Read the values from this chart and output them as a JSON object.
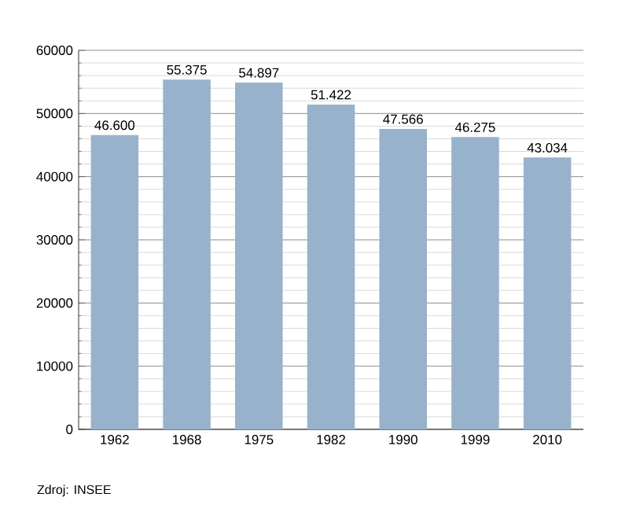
{
  "chart_data": {
    "type": "bar",
    "categories": [
      "1962",
      "1968",
      "1975",
      "1982",
      "1990",
      "1999",
      "2010"
    ],
    "values": [
      46600,
      55375,
      54897,
      51422,
      47566,
      46275,
      43034
    ],
    "value_labels": [
      "46.600",
      "55.375",
      "54.897",
      "51.422",
      "47.566",
      "46.275",
      "43.034"
    ],
    "color": "#98b2cc",
    "ylim": [
      0,
      60000
    ],
    "yticks": [
      0,
      10000,
      20000,
      30000,
      40000,
      50000,
      60000
    ],
    "grid": "y",
    "annotations": [
      "Zdroj: INSEE"
    ]
  }
}
